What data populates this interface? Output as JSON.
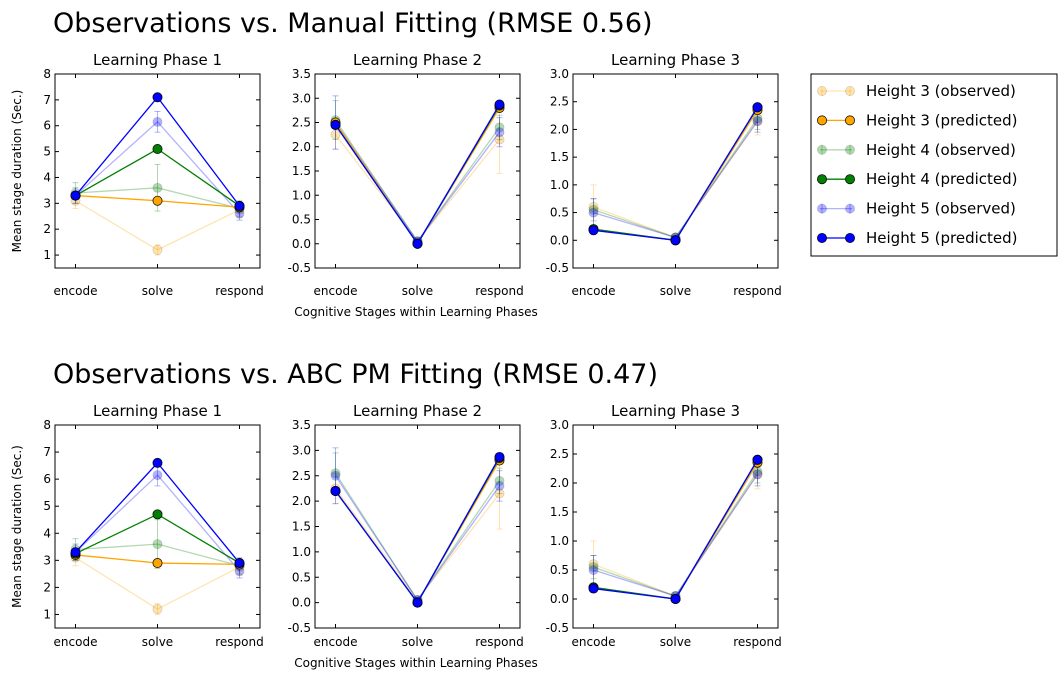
{
  "legend": [
    {
      "label": "Height 3 (observed)",
      "color": "#ffa500",
      "observed": true
    },
    {
      "label": "Height 3 (predicted)",
      "color": "#ffa500",
      "observed": false
    },
    {
      "label": "Height 4 (observed)",
      "color": "#008000",
      "observed": true
    },
    {
      "label": "Height 4 (predicted)",
      "color": "#008000",
      "observed": false
    },
    {
      "label": "Height 5 (observed)",
      "color": "#0000ff",
      "observed": true
    },
    {
      "label": "Height 5 (predicted)",
      "color": "#0000ff",
      "observed": false
    }
  ],
  "chart_data": [
    {
      "type": "line",
      "title": "Observations vs. Manual Fitting (RMSE 0.56)",
      "ylabel": "Mean stage duration (Sec.)",
      "xlabel": "Cognitive Stages within Learning Phases",
      "panels": [
        {
          "title": "Learning Phase 1",
          "categories": [
            "encode",
            "solve",
            "respond"
          ],
          "ylim": [
            0.5,
            8
          ],
          "yticks": [
            "1",
            "2",
            "3",
            "4",
            "5",
            "6",
            "7",
            "8"
          ],
          "series": [
            {
              "name": "Height 3 (observed)",
              "values": [
                3.1,
                1.2,
                2.75
              ],
              "err": [
                0.3,
                0.2,
                0.3
              ]
            },
            {
              "name": "Height 3 (predicted)",
              "values": [
                3.3,
                3.1,
                2.85
              ]
            },
            {
              "name": "Height 4 (observed)",
              "values": [
                3.4,
                3.6,
                2.8
              ],
              "err": [
                0.4,
                0.9,
                0.3
              ]
            },
            {
              "name": "Height 4 (predicted)",
              "values": [
                3.3,
                5.1,
                2.9
              ]
            },
            {
              "name": "Height 5 (observed)",
              "values": [
                3.3,
                6.15,
                2.6
              ],
              "err": [
                0.3,
                0.4,
                0.25
              ]
            },
            {
              "name": "Height 5 (predicted)",
              "values": [
                3.3,
                7.1,
                2.9
              ]
            }
          ]
        },
        {
          "title": "Learning Phase 2",
          "categories": [
            "encode",
            "solve",
            "respond"
          ],
          "ylim": [
            -0.5,
            3.5
          ],
          "yticks": [
            "-0.5",
            "0.0",
            "0.5",
            "1.0",
            "1.5",
            "2.0",
            "2.5",
            "3.0",
            "3.5"
          ],
          "series": [
            {
              "name": "Height 3 (observed)",
              "values": [
                2.25,
                0.05,
                2.15
              ],
              "err": [
                0.3,
                0.05,
                0.7
              ]
            },
            {
              "name": "Height 3 (predicted)",
              "values": [
                2.5,
                0.0,
                2.8
              ]
            },
            {
              "name": "Height 4 (observed)",
              "values": [
                2.55,
                0.05,
                2.4
              ],
              "err": [
                0.4,
                0.05,
                0.25
              ]
            },
            {
              "name": "Height 4 (predicted)",
              "values": [
                2.45,
                0.0,
                2.85
              ]
            },
            {
              "name": "Height 5 (observed)",
              "values": [
                2.5,
                0.05,
                2.3
              ],
              "err": [
                0.55,
                0.05,
                0.3
              ]
            },
            {
              "name": "Height 5 (predicted)",
              "values": [
                2.45,
                0.0,
                2.87
              ]
            }
          ]
        },
        {
          "title": "Learning Phase 3",
          "categories": [
            "encode",
            "solve",
            "respond"
          ],
          "ylim": [
            -0.5,
            3.0
          ],
          "yticks": [
            "-0.5",
            "0.0",
            "0.5",
            "1.0",
            "1.5",
            "2.0",
            "2.5",
            "3.0"
          ],
          "series": [
            {
              "name": "Height 3 (observed)",
              "values": [
                0.6,
                0.05,
                2.15
              ],
              "err": [
                0.4,
                0.03,
                0.25
              ]
            },
            {
              "name": "Height 3 (predicted)",
              "values": [
                0.2,
                0.0,
                2.35
              ]
            },
            {
              "name": "Height 4 (observed)",
              "values": [
                0.55,
                0.05,
                2.2
              ],
              "err": [
                0.2,
                0.03,
                0.2
              ]
            },
            {
              "name": "Height 4 (predicted)",
              "values": [
                0.2,
                0.0,
                2.4
              ]
            },
            {
              "name": "Height 5 (observed)",
              "values": [
                0.5,
                0.05,
                2.15
              ],
              "err": [
                0.25,
                0.03,
                0.2
              ]
            },
            {
              "name": "Height 5 (predicted)",
              "values": [
                0.18,
                0.0,
                2.4
              ]
            }
          ]
        }
      ]
    },
    {
      "type": "line",
      "title": "Observations vs. ABC PM Fitting (RMSE 0.47)",
      "ylabel": "Mean stage duration (Sec.)",
      "xlabel": "Cognitive Stages within Learning Phases",
      "panels": [
        {
          "title": "Learning Phase 1",
          "categories": [
            "encode",
            "solve",
            "respond"
          ],
          "ylim": [
            0.5,
            8
          ],
          "yticks": [
            "1",
            "2",
            "3",
            "4",
            "5",
            "6",
            "7",
            "8"
          ],
          "series": [
            {
              "name": "Height 3 (observed)",
              "values": [
                3.1,
                1.2,
                2.75
              ],
              "err": [
                0.3,
                0.2,
                0.3
              ]
            },
            {
              "name": "Height 3 (predicted)",
              "values": [
                3.2,
                2.9,
                2.85
              ]
            },
            {
              "name": "Height 4 (observed)",
              "values": [
                3.4,
                3.6,
                2.8
              ],
              "err": [
                0.4,
                0.9,
                0.3
              ]
            },
            {
              "name": "Height 4 (predicted)",
              "values": [
                3.25,
                4.7,
                2.9
              ]
            },
            {
              "name": "Height 5 (observed)",
              "values": [
                3.3,
                6.15,
                2.6
              ],
              "err": [
                0.3,
                0.4,
                0.25
              ]
            },
            {
              "name": "Height 5 (predicted)",
              "values": [
                3.3,
                6.6,
                2.9
              ]
            }
          ]
        },
        {
          "title": "Learning Phase 2",
          "categories": [
            "encode",
            "solve",
            "respond"
          ],
          "ylim": [
            -0.5,
            3.5
          ],
          "yticks": [
            "-0.5",
            "0.0",
            "0.5",
            "1.0",
            "1.5",
            "2.0",
            "2.5",
            "3.0",
            "3.5"
          ],
          "series": [
            {
              "name": "Height 3 (observed)",
              "values": [
                2.25,
                0.05,
                2.15
              ],
              "err": [
                0.3,
                0.05,
                0.7
              ]
            },
            {
              "name": "Height 3 (predicted)",
              "values": [
                2.2,
                0.0,
                2.8
              ]
            },
            {
              "name": "Height 4 (observed)",
              "values": [
                2.55,
                0.05,
                2.4
              ],
              "err": [
                0.4,
                0.05,
                0.25
              ]
            },
            {
              "name": "Height 4 (predicted)",
              "values": [
                2.2,
                0.0,
                2.85
              ]
            },
            {
              "name": "Height 5 (observed)",
              "values": [
                2.5,
                0.05,
                2.3
              ],
              "err": [
                0.55,
                0.05,
                0.3
              ]
            },
            {
              "name": "Height 5 (predicted)",
              "values": [
                2.2,
                0.0,
                2.87
              ]
            }
          ]
        },
        {
          "title": "Learning Phase 3",
          "categories": [
            "encode",
            "solve",
            "respond"
          ],
          "ylim": [
            -0.5,
            3.0
          ],
          "yticks": [
            "-0.5",
            "0.0",
            "0.5",
            "1.0",
            "1.5",
            "2.0",
            "2.5",
            "3.0"
          ],
          "series": [
            {
              "name": "Height 3 (observed)",
              "values": [
                0.6,
                0.05,
                2.15
              ],
              "err": [
                0.4,
                0.03,
                0.25
              ]
            },
            {
              "name": "Height 3 (predicted)",
              "values": [
                0.2,
                0.0,
                2.35
              ]
            },
            {
              "name": "Height 4 (observed)",
              "values": [
                0.55,
                0.05,
                2.2
              ],
              "err": [
                0.2,
                0.03,
                0.2
              ]
            },
            {
              "name": "Height 4 (predicted)",
              "values": [
                0.2,
                0.0,
                2.4
              ]
            },
            {
              "name": "Height 5 (observed)",
              "values": [
                0.5,
                0.05,
                2.15
              ],
              "err": [
                0.25,
                0.03,
                0.2
              ]
            },
            {
              "name": "Height 5 (predicted)",
              "values": [
                0.18,
                0.0,
                2.4
              ]
            }
          ]
        }
      ]
    }
  ]
}
